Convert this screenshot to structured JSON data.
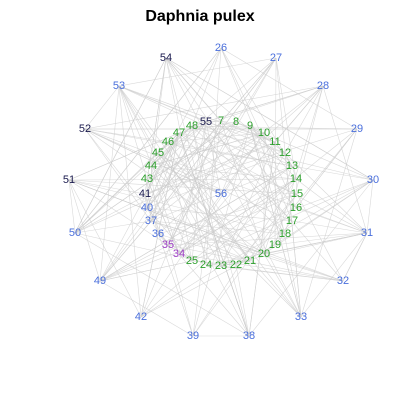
{
  "title": "Daphnia pulex",
  "colors": {
    "outer": "#4a6fdc",
    "inner": "#2ca02c",
    "dark": "#1a1a4e",
    "purple": "#a040c8",
    "edge": "#cccccc"
  },
  "nodes": [
    {
      "id": "7",
      "group": "inner"
    },
    {
      "id": "8",
      "group": "inner"
    },
    {
      "id": "9",
      "group": "inner"
    },
    {
      "id": "10",
      "group": "inner"
    },
    {
      "id": "11",
      "group": "inner"
    },
    {
      "id": "12",
      "group": "inner"
    },
    {
      "id": "13",
      "group": "inner"
    },
    {
      "id": "14",
      "group": "inner"
    },
    {
      "id": "15",
      "group": "inner"
    },
    {
      "id": "16",
      "group": "inner"
    },
    {
      "id": "17",
      "group": "inner"
    },
    {
      "id": "18",
      "group": "inner"
    },
    {
      "id": "19",
      "group": "inner"
    },
    {
      "id": "20",
      "group": "inner"
    },
    {
      "id": "21",
      "group": "inner"
    },
    {
      "id": "22",
      "group": "inner"
    },
    {
      "id": "23",
      "group": "inner"
    },
    {
      "id": "24",
      "group": "inner"
    },
    {
      "id": "25",
      "group": "inner"
    },
    {
      "id": "34",
      "group": "purple"
    },
    {
      "id": "35",
      "group": "purple"
    },
    {
      "id": "36",
      "group": "outer"
    },
    {
      "id": "37",
      "group": "outer"
    },
    {
      "id": "40",
      "group": "outer"
    },
    {
      "id": "41",
      "group": "dark"
    },
    {
      "id": "43",
      "group": "inner"
    },
    {
      "id": "44",
      "group": "inner"
    },
    {
      "id": "45",
      "group": "inner"
    },
    {
      "id": "46",
      "group": "inner"
    },
    {
      "id": "47",
      "group": "inner"
    },
    {
      "id": "48",
      "group": "inner"
    },
    {
      "id": "55",
      "group": "dark"
    },
    {
      "id": "56",
      "group": "outer"
    },
    {
      "id": "26",
      "group": "outer"
    },
    {
      "id": "27",
      "group": "outer"
    },
    {
      "id": "28",
      "group": "outer"
    },
    {
      "id": "29",
      "group": "outer"
    },
    {
      "id": "30",
      "group": "outer"
    },
    {
      "id": "31",
      "group": "outer"
    },
    {
      "id": "32",
      "group": "outer"
    },
    {
      "id": "33",
      "group": "outer"
    },
    {
      "id": "38",
      "group": "outer"
    },
    {
      "id": "39",
      "group": "outer"
    },
    {
      "id": "42",
      "group": "outer"
    },
    {
      "id": "49",
      "group": "outer"
    },
    {
      "id": "50",
      "group": "outer"
    },
    {
      "id": "51",
      "group": "dark"
    },
    {
      "id": "52",
      "group": "dark"
    },
    {
      "id": "53",
      "group": "outer"
    },
    {
      "id": "54",
      "group": "dark"
    }
  ]
}
